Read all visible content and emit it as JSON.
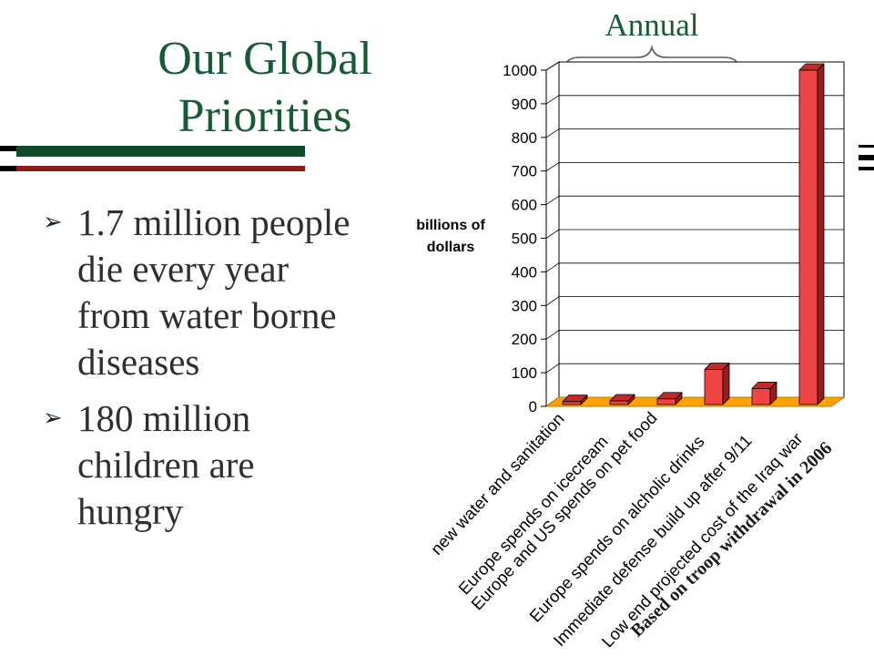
{
  "slide": {
    "title": "Our Global\nPriorities",
    "bullet_icon": "arrow-bullet-icon",
    "bullets": [
      {
        "text": "1.7 million people\ndie every year\nfrom water borne\ndiseases"
      },
      {
        "text": "180 million\nchildren are\nhungry"
      }
    ],
    "colors": {
      "title": "#175a35",
      "body_text": "#2f2f2f",
      "rule_green": "#0f4a2a",
      "rule_red": "#8a1c1c"
    }
  },
  "chart_data": {
    "type": "bar",
    "style": "3d-column",
    "ylabel": "billions of\ndollars",
    "categories": [
      "new water and sanitation",
      "Europe spends on icecream",
      "Europe and US spends on pet food",
      "Europe spends on alcholic drinks",
      "Immediate defense build up after 9/11",
      "Low end projected cost of the Iraq war"
    ],
    "values": [
      9,
      11,
      17,
      105,
      48,
      1000
    ],
    "ylim": [
      0,
      1000
    ],
    "yticks": [
      0,
      100,
      200,
      300,
      400,
      500,
      600,
      700,
      800,
      900,
      1000
    ],
    "grid": true,
    "legend": "none",
    "annotations": {
      "bracket_label": "Annual",
      "note": "Based on troop withdrawal in 2006"
    },
    "colors": {
      "bar_front": "#f04545",
      "bar_top": "#c42a2a",
      "bar_side": "#9a1b1b",
      "floor": "#ffa200"
    }
  }
}
